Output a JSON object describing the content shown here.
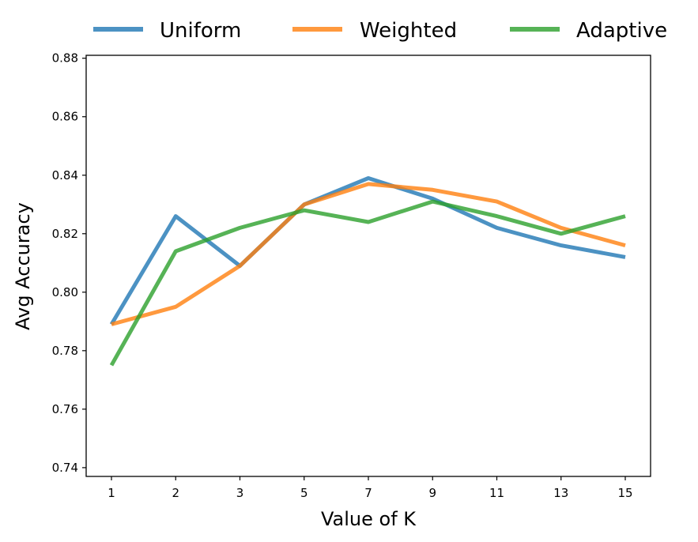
{
  "chart_data": {
    "type": "line",
    "title": "",
    "xlabel": "Value of K",
    "ylabel": "Avg Accuracy",
    "categories": [
      "1",
      "2",
      "3",
      "5",
      "7",
      "9",
      "11",
      "13",
      "15"
    ],
    "ylim": [
      0.737,
      0.881
    ],
    "yticks": [
      0.74,
      0.76,
      0.78,
      0.8,
      0.82,
      0.84,
      0.86,
      0.88
    ],
    "ytick_labels": [
      "0.74",
      "0.76",
      "0.78",
      "0.80",
      "0.82",
      "0.84",
      "0.86",
      "0.88"
    ],
    "grid": false,
    "legend_placement": "top-center",
    "series": [
      {
        "name": "Uniform",
        "color": "#1f77b4",
        "values": [
          0.789,
          0.826,
          0.809,
          0.83,
          0.839,
          0.832,
          0.822,
          0.816,
          0.812
        ]
      },
      {
        "name": "Weighted",
        "color": "#ff7f0e",
        "values": [
          0.789,
          0.795,
          0.809,
          0.83,
          0.837,
          0.835,
          0.831,
          0.822,
          0.816
        ]
      },
      {
        "name": "Adaptive",
        "color": "#2ca02c",
        "values": [
          0.775,
          0.814,
          0.822,
          0.828,
          0.824,
          0.831,
          0.826,
          0.82,
          0.826
        ]
      }
    ]
  }
}
